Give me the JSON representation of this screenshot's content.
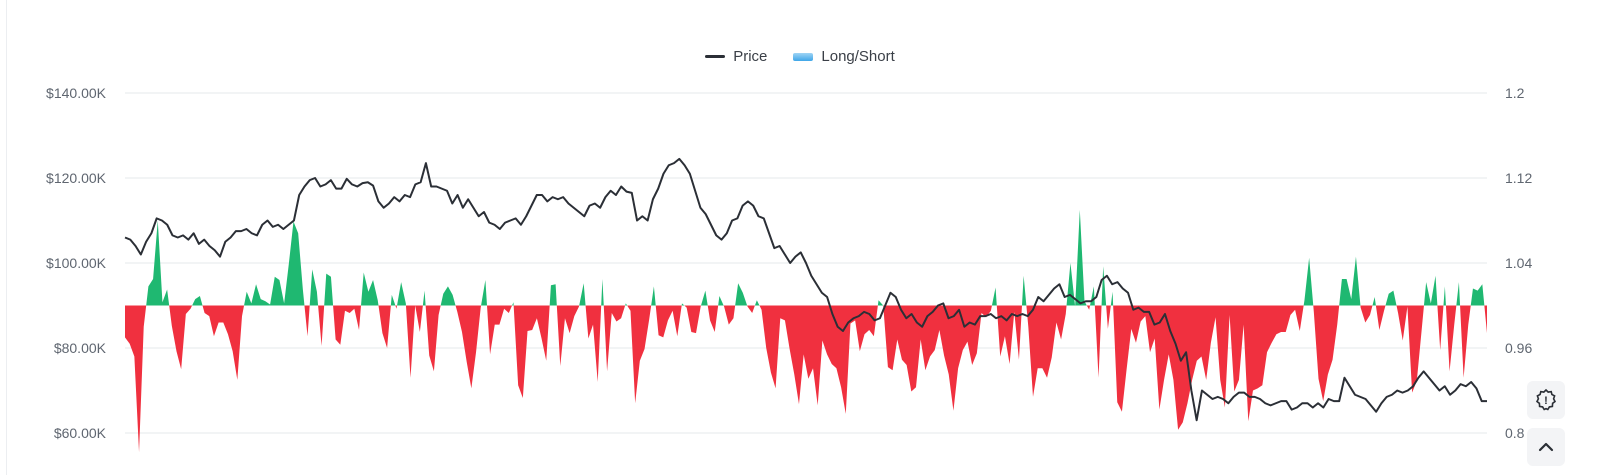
{
  "chart_data": {
    "type": "line",
    "legend": [
      {
        "name": "Price",
        "color": "#2b2f36",
        "marker": "line"
      },
      {
        "name": "Long/Short",
        "color": "#3fa6e8",
        "marker": "area"
      }
    ],
    "legend_position": "top-center",
    "y_left": {
      "ticks": [
        "$140.00K",
        "$120.00K",
        "$100.00K",
        "$80.00K",
        "$60.00K"
      ],
      "ylim": [
        60000,
        140000
      ]
    },
    "y_right": {
      "ticks": [
        "1.2",
        "1.12",
        "1.04",
        "0.96",
        "0.8"
      ],
      "ylim": [
        0.88,
        1.2
      ],
      "baseline": 1.0
    },
    "grid": true,
    "colors": {
      "price": "#2b2f36",
      "long": "#1fb871",
      "short": "#f0303f",
      "grid": "#e6e8eb"
    },
    "series": [
      {
        "name": "Price",
        "values": [
          106000,
          105500,
          104000,
          102000,
          105000,
          107000,
          110500,
          110000,
          109000,
          106500,
          106000,
          106500,
          105500,
          107000,
          104500,
          105500,
          104000,
          103000,
          101500,
          105000,
          106000,
          107500,
          107500,
          108000,
          107000,
          106500,
          109000,
          110000,
          108500,
          109000,
          108000,
          109000,
          110000,
          116000,
          118000,
          119500,
          120000,
          118000,
          118500,
          119500,
          117500,
          117500,
          119800,
          118500,
          118000,
          118800,
          119000,
          118200,
          114500,
          113000,
          114000,
          115500,
          114500,
          116000,
          115500,
          118500,
          119000,
          123500,
          118000,
          118000,
          117500,
          117000,
          114000,
          116000,
          113000,
          115000,
          113000,
          111000,
          112000,
          109500,
          109000,
          108000,
          109500,
          110000,
          110500,
          109000,
          111000,
          113500,
          116000,
          116000,
          114500,
          115500,
          115000,
          115500,
          114000,
          113000,
          112000,
          111000,
          113500,
          114000,
          113000,
          115500,
          117000,
          116000,
          118000,
          116800,
          116500,
          110000,
          111000,
          110000,
          115000,
          117500,
          121000,
          123000,
          123500,
          124500,
          123000,
          121000,
          117000,
          113000,
          111500,
          109000,
          106500,
          105500,
          107000,
          110000,
          110500,
          113500,
          114500,
          113500,
          111000,
          110500,
          107000,
          103500,
          104000,
          102000,
          100000,
          101500,
          102500,
          100000,
          97000,
          95000,
          93000,
          92000,
          88000,
          85000,
          84000,
          86000,
          87000,
          87500,
          88500,
          88000,
          86500,
          87000,
          90000,
          93000,
          92000,
          89000,
          87000,
          88000,
          86000,
          85000,
          87500,
          88500,
          90000,
          90500,
          87000,
          87500,
          89000,
          85000,
          86000,
          85500,
          87500,
          87500,
          88000,
          87000,
          87500,
          86500,
          88000,
          87500,
          88000,
          87500,
          89000,
          92000,
          91000,
          92500,
          94000,
          95000,
          92000,
          92500,
          91500,
          90500,
          91000,
          91000,
          92000,
          96000,
          97000,
          95000,
          95500,
          94000,
          93000,
          89000,
          89500,
          88500,
          88500,
          85500,
          86000,
          88000,
          84000,
          81000,
          77000,
          79000,
          70000,
          63000,
          70000,
          69000,
          68000,
          68500,
          68000,
          67000,
          68500,
          69500,
          69500,
          68500,
          68500,
          68000,
          67000,
          66500,
          67000,
          67500,
          67500,
          65500,
          66000,
          67000,
          67000,
          66000,
          67000,
          66000,
          68000,
          67500,
          67500,
          73000,
          71000,
          69000,
          68500,
          68000,
          66500,
          65000,
          67000,
          68500,
          69000,
          70000,
          69500,
          70000,
          71000,
          73000,
          74500,
          73000,
          71500,
          70000,
          71000,
          69000,
          70000,
          71500,
          71000,
          72000,
          70500,
          67500,
          67500
        ]
      },
      {
        "name": "Long/Short",
        "values": [
          0.97,
          0.964,
          0.952,
          0.862,
          0.98,
          1.018,
          1.025,
          1.08,
          1.003,
          1.015,
          0.981,
          0.957,
          0.94,
          0.992,
          0.997,
          1.006,
          1.009,
          0.993,
          0.99,
          0.971,
          0.984,
          0.984,
          0.973,
          0.957,
          0.93,
          0.99,
          1.013,
          1.002,
          1.02,
          1.006,
          1.004,
          1.001,
          1.027,
          1.024,
          1.002,
          1.039,
          1.079,
          1.068,
          1.015,
          0.971,
          1.034,
          1.013,
          0.962,
          1.03,
          1.027,
          0.968,
          0.963,
          0.995,
          0.993,
          0.997,
          0.977,
          1.031,
          1.013,
          1.024,
          1.005,
          0.974,
          0.96,
          1.01,
          0.997,
          1.022,
          1.002,
          0.932,
          1.0,
          0.975,
          1.014,
          0.953,
          0.938,
          0.991,
          1.011,
          1.018,
          1.01,
          0.994,
          0.975,
          0.947,
          0.922,
          0.956,
          0.998,
          1.024,
          0.954,
          0.982,
          0.982,
          0.997,
          0.993,
          1.003,
          0.925,
          0.913,
          0.976,
          0.977,
          0.988,
          0.969,
          0.948,
          1.019,
          1.02,
          0.943,
          0.988,
          0.974,
          0.99,
          0.999,
          1.021,
          0.969,
          0.982,
          0.928,
          1.025,
          0.938,
          0.993,
          0.985,
          0.988,
          1.002,
          0.995,
          0.908,
          0.948,
          0.959,
          0.987,
          1.018,
          0.972,
          0.97,
          0.986,
          0.995,
          0.971,
          1.002,
          0.998,
          0.975,
          0.974,
          0.999,
          1.014,
          0.986,
          0.975,
          1.009,
          0.999,
          0.982,
          0.988,
          1.021,
          1.012,
          0.999,
          0.993,
          1.005,
          0.996,
          0.96,
          0.937,
          0.922,
          0.988,
          0.986,
          0.959,
          0.935,
          0.907,
          0.954,
          0.931,
          0.941,
          0.906,
          0.967,
          0.954,
          0.945,
          0.941,
          0.923,
          0.898,
          0.983,
          0.986,
          0.957,
          0.973,
          0.977,
          0.971,
          1.005,
          1.0,
          0.942,
          0.939,
          0.968,
          0.949,
          0.944,
          0.919,
          0.923,
          0.968,
          0.939,
          0.952,
          0.958,
          0.977,
          0.953,
          0.935,
          0.901,
          0.941,
          0.958,
          0.966,
          0.944,
          0.955,
          0.993,
          0.989,
          0.995,
          1.017,
          0.952,
          0.971,
          0.945,
          0.994,
          0.949,
          1.028,
          0.98,
          0.914,
          0.941,
          0.941,
          0.932,
          0.951,
          0.984,
          0.968,
          0.992,
          1.04,
          0.999,
          1.09,
          1.004,
          0.996,
          1.018,
          0.932,
          1.037,
          0.978,
          1.013,
          0.909,
          0.9,
          0.94,
          0.978,
          0.965,
          0.985,
          0.99,
          0.956,
          0.969,
          0.902,
          0.93,
          0.954,
          0.93,
          0.883,
          0.89,
          0.908,
          0.93,
          0.948,
          0.952,
          0.93,
          0.965,
          0.989,
          0.93,
          0.904,
          0.991,
          0.919,
          0.93,
          0.982,
          0.891,
          0.92,
          0.922,
          0.925,
          0.956,
          0.965,
          0.973,
          0.975,
          0.975,
          0.991,
          0.996,
          0.976,
          1.005,
          1.045,
          0.994,
          0.931,
          0.91,
          0.935,
          0.949,
          0.982,
          1.025,
          1.025,
          1.006,
          1.046,
          0.998,
          0.984,
          0.991,
          1.008,
          0.977,
          0.995,
          1.011,
          1.014,
          0.993,
          0.967,
          0.999,
          0.918,
          0.929,
          0.975,
          1.022,
          1.002,
          1.028,
          0.958,
          1.018,
          0.938,
          0.982,
          1.022,
          0.932,
          0.982,
          1.016,
          1.014,
          1.02,
          0.974
        ]
      }
    ]
  },
  "buttons": {
    "alert": "!",
    "scroll_top": "^"
  }
}
